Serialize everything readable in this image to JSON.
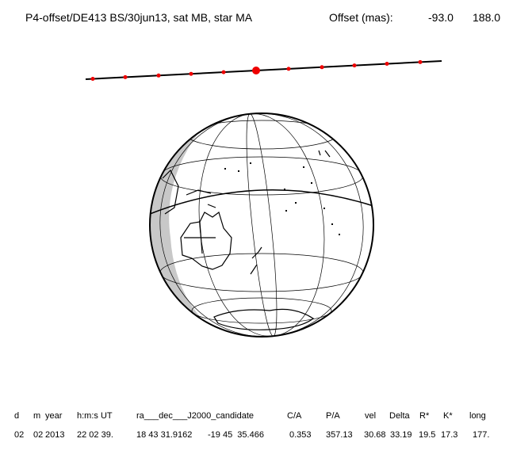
{
  "header": {
    "title": "P4-offset/DE413 BS/30jun13, sat MB, star MA",
    "offset_label": "Offset (mas):",
    "offset_x": "-93.0",
    "offset_y": "188.0"
  },
  "table": {
    "columns": [
      "d",
      "m",
      "year",
      "h:m:s UT",
      "ra___dec___J2000_candidate",
      "C/A",
      "P/A",
      "vel",
      "Delta",
      "R*",
      "K*",
      "long"
    ],
    "rows": [
      [
        "02",
        "02",
        "2013",
        "22 02 39.",
        "18 43 31.9162",
        "-19 45  35.466",
        "0.353",
        "357.13",
        "30.68",
        "33.19",
        "19.5",
        "17.3",
        "177."
      ]
    ]
  }
}
